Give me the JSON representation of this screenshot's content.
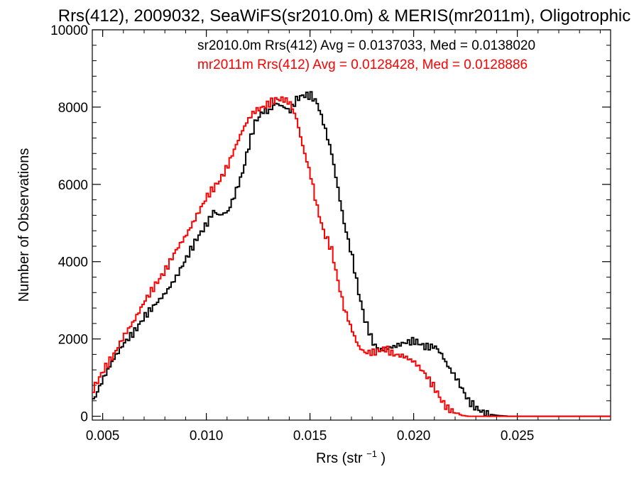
{
  "chart_data": {
    "type": "line",
    "step": true,
    "title": "Rrs(412), 2009032, SeaWiFS(sr2010.0m) & MERIS(mr2011m), Oligotrophic",
    "xlabel": "Rrs (str",
    "xlabel_sup": "−1",
    "xlabel_end": ")",
    "ylabel": "Number of Observations",
    "xlim": [
      0.0045,
      0.0295
    ],
    "ylim": [
      -100,
      10000
    ],
    "xticks": [
      0.005,
      0.01,
      0.015,
      0.02,
      0.025
    ],
    "xtick_labels": [
      "0.005",
      "0.010",
      "0.015",
      "0.020",
      "0.025"
    ],
    "yticks": [
      0,
      2000,
      4000,
      6000,
      8000,
      10000
    ],
    "ytick_labels": [
      "0",
      "2000",
      "4000",
      "6000",
      "8000",
      "10000"
    ],
    "legend_placement": "top-right",
    "series": [
      {
        "name": "sr2010.0m",
        "legend_text": "sr2010.0m Rrs(412) Avg = 0.0137033, Med = 0.0138020",
        "color": "#000000",
        "x": [
          0.0045,
          0.005,
          0.0055,
          0.006,
          0.0065,
          0.007,
          0.0075,
          0.008,
          0.0085,
          0.009,
          0.0095,
          0.01,
          0.0103,
          0.0106,
          0.011,
          0.0113,
          0.0117,
          0.012,
          0.0123,
          0.0127,
          0.013,
          0.0133,
          0.0137,
          0.014,
          0.0143,
          0.0146,
          0.015,
          0.0153,
          0.0156,
          0.016,
          0.0163,
          0.0166,
          0.017,
          0.0173,
          0.0176,
          0.018,
          0.0183,
          0.0186,
          0.019,
          0.0195,
          0.02,
          0.0205,
          0.021,
          0.0213,
          0.0216,
          0.022,
          0.0223,
          0.0226,
          0.023,
          0.0233,
          0.0236,
          0.024,
          0.0245,
          0.025,
          0.026,
          0.027,
          0.028,
          0.0295
        ],
        "y": [
          400,
          1000,
          1500,
          1900,
          2200,
          2600,
          2900,
          3200,
          3600,
          4100,
          4600,
          5000,
          5300,
          5200,
          5300,
          5700,
          6300,
          7000,
          7600,
          7900,
          7900,
          8100,
          8000,
          7900,
          8200,
          8300,
          8300,
          8100,
          7600,
          6800,
          5900,
          5000,
          4100,
          3200,
          2500,
          1900,
          1700,
          1750,
          1800,
          1900,
          1950,
          1800,
          1800,
          1600,
          1300,
          1000,
          700,
          400,
          200,
          100,
          50,
          20,
          0,
          0,
          0,
          0,
          0,
          0
        ]
      },
      {
        "name": "mr2011m",
        "legend_text": "mr2011m Rrs(412) Avg = 0.0128428, Med = 0.0128886",
        "color": "#ff0000",
        "x": [
          0.0045,
          0.005,
          0.0055,
          0.006,
          0.0065,
          0.007,
          0.0075,
          0.008,
          0.0085,
          0.009,
          0.0095,
          0.01,
          0.0103,
          0.0106,
          0.011,
          0.0113,
          0.0117,
          0.012,
          0.0123,
          0.0127,
          0.013,
          0.0133,
          0.0137,
          0.014,
          0.0143,
          0.0146,
          0.015,
          0.0153,
          0.0156,
          0.016,
          0.0163,
          0.0166,
          0.017,
          0.0173,
          0.0176,
          0.018,
          0.0183,
          0.0186,
          0.019,
          0.0195,
          0.02,
          0.0205,
          0.021,
          0.0213,
          0.0216,
          0.022,
          0.0223,
          0.0226,
          0.023,
          0.0235,
          0.024,
          0.025,
          0.026,
          0.028,
          0.0295
        ],
        "y": [
          700,
          1200,
          1600,
          2100,
          2500,
          3000,
          3400,
          3800,
          4300,
          4700,
          5200,
          5700,
          5900,
          6100,
          6500,
          6900,
          7400,
          7700,
          7900,
          8000,
          8100,
          8200,
          8200,
          8100,
          7700,
          7000,
          6200,
          5400,
          4800,
          4300,
          3500,
          2800,
          2200,
          1800,
          1650,
          1650,
          1700,
          1750,
          1600,
          1550,
          1400,
          1100,
          700,
          400,
          200,
          80,
          20,
          0,
          0,
          0,
          0,
          0,
          0,
          0,
          0
        ]
      }
    ]
  }
}
